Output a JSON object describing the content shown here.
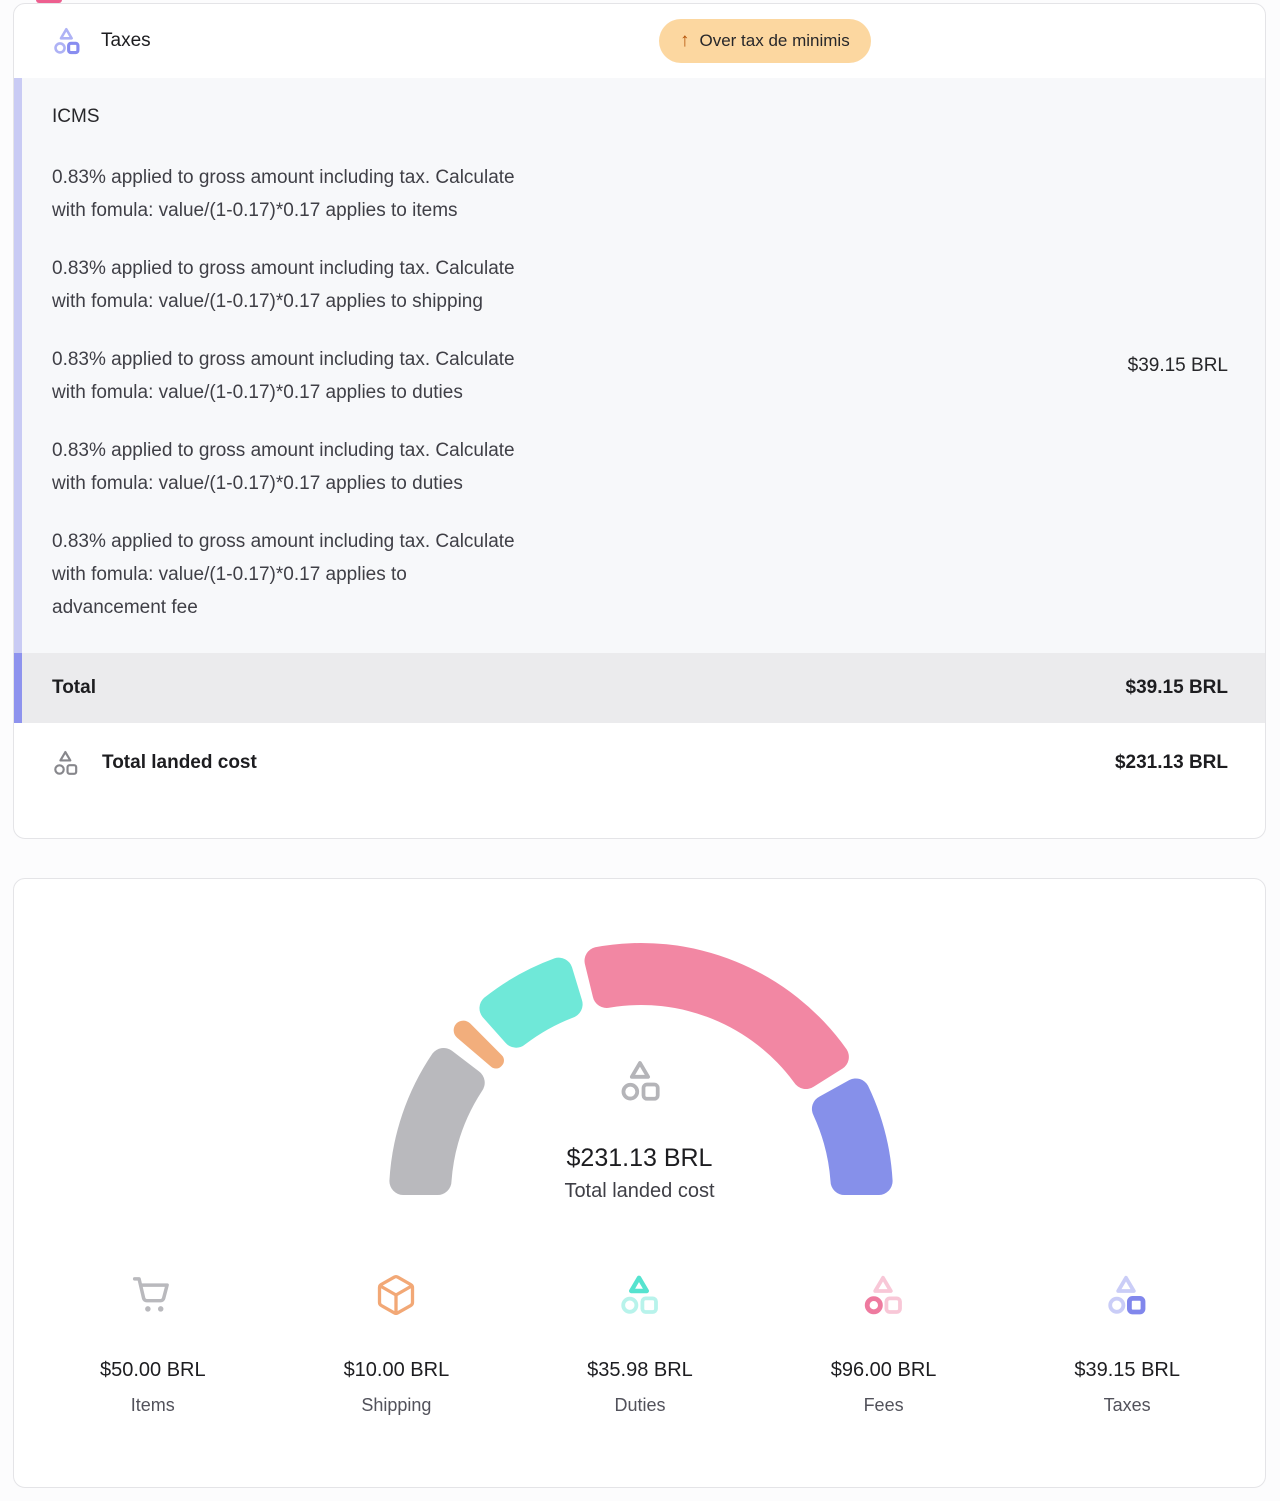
{
  "taxes_card": {
    "title": "Taxes",
    "badge": {
      "arrow": "↑",
      "label": "Over tax de minimis",
      "bg": "#fcd7a0",
      "arrow_color": "#b45309"
    },
    "section_title": "ICMS",
    "lines": [
      [
        "0.83% applied to gross amount including tax. Calculate",
        "with fomula: value/(1-0.17)*0.17 applies to items"
      ],
      [
        "0.83% applied to gross amount including tax. Calculate",
        "with fomula: value/(1-0.17)*0.17 applies to shipping"
      ],
      [
        "0.83% applied to gross amount including tax. Calculate",
        "with fomula: value/(1-0.17)*0.17 applies to duties"
      ],
      [
        "0.83% applied to gross amount including tax. Calculate",
        "with fomula: value/(1-0.17)*0.17 applies to duties"
      ],
      [
        "0.83% applied to gross amount including tax. Calculate",
        "with fomula: value/(1-0.17)*0.17 applies to",
        "advancement fee"
      ]
    ],
    "section_value": "$39.15 BRL",
    "total_label": "Total",
    "total_value": "$39.15 BRL",
    "landed_label": "Total landed cost",
    "landed_value": "$231.13 BRL",
    "accent_stripe": "#c9cbf4",
    "accent_stripe_total": "#8e93ee",
    "header_icon": "shapes-icon",
    "header_icon_color": "#888df0"
  },
  "chart_card": {
    "center_icon": "shapes-icon",
    "center_value": "$231.13 BRL",
    "center_label": "Total landed cost",
    "legend": [
      {
        "icon": "cart-icon",
        "value": "$50.00 BRL",
        "label": "Items",
        "color": "#b9b9bd"
      },
      {
        "icon": "package-icon",
        "value": "$10.00 BRL",
        "label": "Shipping",
        "color": "#f2a876"
      },
      {
        "icon": "shapes-triangle-icon",
        "value": "$35.98 BRL",
        "label": "Duties",
        "color": "#55e3cf"
      },
      {
        "icon": "shapes-circle-icon",
        "value": "$96.00 BRL",
        "label": "Fees",
        "color": "#ee7a9f"
      },
      {
        "icon": "shapes-square-icon",
        "value": "$39.15 BRL",
        "label": "Taxes",
        "color": "#8187ec"
      }
    ]
  },
  "chart_data": {
    "type": "gauge-donut",
    "title": "Total landed cost",
    "categories": [
      "Items",
      "Shipping",
      "Duties",
      "Fees",
      "Taxes"
    ],
    "values": [
      50.0,
      10.0,
      35.98,
      96.0,
      39.15
    ],
    "unit": "BRL",
    "total": 231.13,
    "center_value": "$231.13 BRL",
    "center_label": "Total landed cost",
    "colors": [
      "#b9b9bd",
      "#f2ae7c",
      "#6fe8d8",
      "#f287a3",
      "#8690ea"
    ],
    "arc_span_degrees": 180,
    "legend_position": "bottom"
  }
}
